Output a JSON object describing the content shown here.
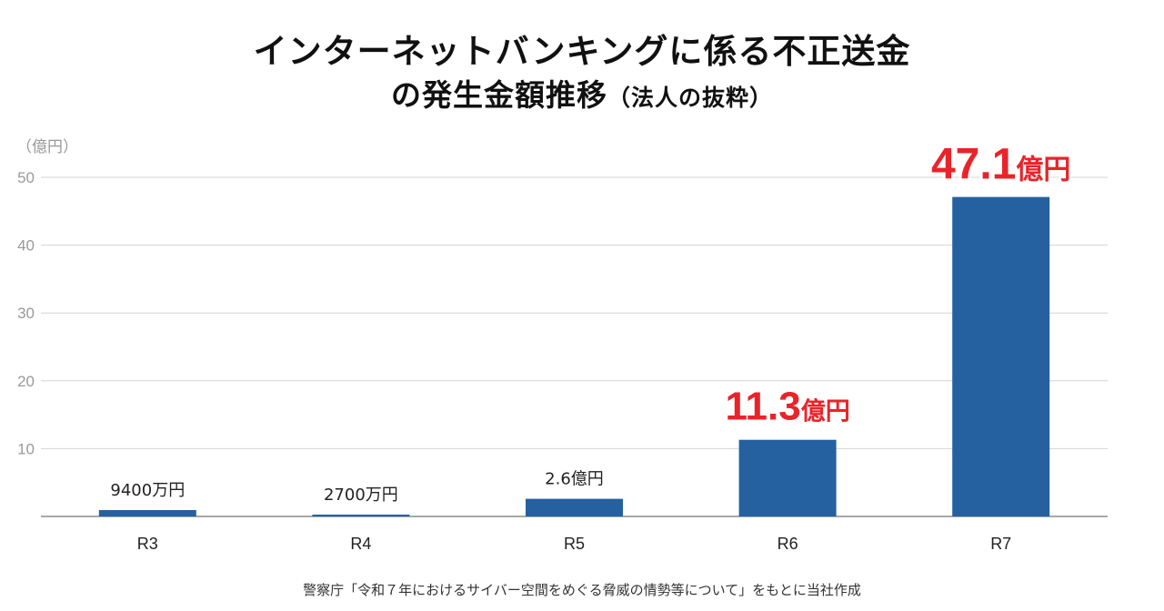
{
  "title": {
    "line1": "インターネットバンキングに係る不正送金",
    "line2": "の発生金額推移",
    "note": "（法人の抜粋）"
  },
  "source": "警察庁「令和７年におけるサイバー空間をめぐる脅威の情勢等について」をもとに当社作成",
  "chart_data": {
    "type": "bar",
    "title": "インターネットバンキングに係る不正送金の発生金額推移（法人の抜粋）",
    "ylabel": "（億円）",
    "xlabel": "",
    "categories": [
      "R3",
      "R4",
      "R5",
      "R6",
      "R7"
    ],
    "values": [
      0.94,
      0.27,
      2.6,
      11.3,
      47.1
    ],
    "labels": [
      "9400万円",
      "2700万円",
      "2.6億円",
      "11.3億円",
      "47.1億円"
    ],
    "highlight": [
      {
        "index": 3,
        "number": "11.3",
        "unit": "億円"
      },
      {
        "index": 4,
        "number": "47.1",
        "unit": "億円"
      }
    ],
    "ylim": [
      0,
      50
    ],
    "yticks": [
      10,
      20,
      30,
      40,
      50
    ],
    "grid": true,
    "legend": "none",
    "bar_color": "#2561a0",
    "highlight_color": "#e8242a"
  }
}
